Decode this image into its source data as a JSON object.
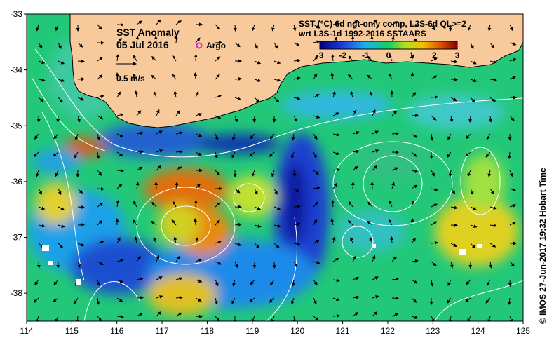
{
  "title": "SST Anomaly",
  "date": "05 Jul 2016",
  "argo_label": "Argo",
  "scale_label": "0.5 m/s",
  "product_line1": "SST (°C) 6d ngt-only comp, L3S-6d QL>=2",
  "product_line2": "wrt L3S-1d 1992-2016 SSTAARS",
  "credit": "© IMOS 27-Jun-2017 19:32 Hobart Time",
  "colors": {
    "land": "#f7c99b",
    "cold_extreme": "#00007f",
    "cold": "#1e6fd9",
    "neutral": "#00c060",
    "warm": "#e0d000",
    "hot": "#c04000",
    "hot_extreme": "#7f0000",
    "argo_marker": "#e020e0",
    "contour": "#ffffff",
    "vector": "#000000"
  },
  "chart_data": {
    "type": "heatmap",
    "x": [
      114,
      115,
      116,
      117,
      118,
      119,
      120,
      121,
      122,
      123,
      124,
      125
    ],
    "y": [
      -33,
      -34,
      -35,
      -36,
      -37,
      -38
    ],
    "xlim": [
      114,
      125
    ],
    "ylim": [
      -38.5,
      -33
    ],
    "colorbar": {
      "ticks": [
        -3,
        -2,
        -1,
        0,
        1,
        2,
        3
      ],
      "range": [
        -3,
        3
      ]
    },
    "x_tick_labels": [
      "114",
      "115",
      "116",
      "117",
      "118",
      "119",
      "120",
      "121",
      "122",
      "123",
      "124",
      "125"
    ],
    "y_tick_labels": [
      "-33",
      "-34",
      "-35",
      "-36",
      "-37",
      "-38"
    ]
  }
}
